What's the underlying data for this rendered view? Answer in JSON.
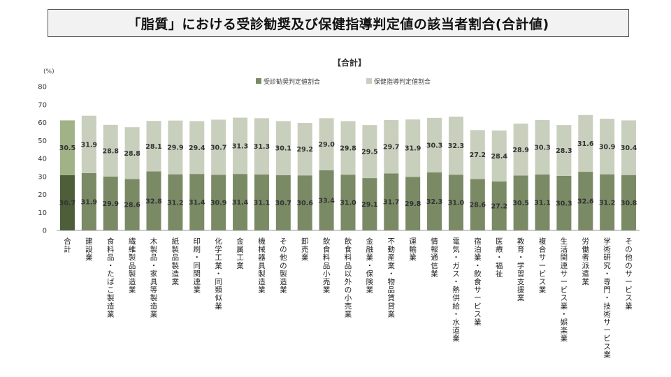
{
  "slide_title": "「脂質」における受診勧奨及び保健指導判定値の該当者割合(合計値)",
  "chart_data": {
    "type": "bar",
    "stacked": true,
    "title": "【合計】",
    "unit_label": "(%)",
    "ylim": [
      0,
      80
    ],
    "yticks": [
      0,
      10,
      20,
      30,
      40,
      50,
      60,
      70,
      80
    ],
    "legend_position": "top-right",
    "categories": [
      "合計",
      "建設業",
      "食料品・たばこ製造業",
      "繊維製品製造業",
      "木製品・家具等製造業",
      "紙製品製造業",
      "印刷・同関連業",
      "化学工業・同類似業",
      "金属工業",
      "機械器具製造業",
      "その他の製造業",
      "卸売業",
      "飲食料品小売業",
      "飲食料品以外の小売業",
      "金融業・保険業",
      "不動産業・物品賃貸業",
      "運輸業",
      "情報通信業",
      "電気・ガス・熱供給・水道業",
      "宿泊業・飲食サービス業",
      "医療・福祉",
      "教育・学習支援業",
      "複合サービス業",
      "生活関連サービス業・娯楽業",
      "労働者派遣業",
      "学術研究・専門・技術サービス業",
      "その他のサービス業"
    ],
    "series": [
      {
        "name": "受診勧奨判定値割合",
        "color": "#7a8a65",
        "highlight_color": "#4e5e3a",
        "values": [
          30.7,
          31.9,
          29.9,
          28.6,
          32.8,
          31.2,
          31.4,
          30.9,
          31.4,
          31.1,
          30.7,
          30.6,
          33.4,
          31.0,
          29.1,
          31.7,
          29.8,
          32.3,
          31.0,
          28.6,
          27.2,
          30.5,
          31.1,
          30.3,
          32.6,
          31.2,
          30.8
        ]
      },
      {
        "name": "保健指導判定値割合",
        "color": "#c9cfbd",
        "highlight_color": "#a1b286",
        "values": [
          30.5,
          31.9,
          28.8,
          28.8,
          28.1,
          29.9,
          29.4,
          30.7,
          31.3,
          31.3,
          30.1,
          29.2,
          29.0,
          29.8,
          29.5,
          29.7,
          31.9,
          30.3,
          32.3,
          27.2,
          28.4,
          28.9,
          30.3,
          28.3,
          31.6,
          30.9,
          30.4
        ]
      }
    ]
  }
}
